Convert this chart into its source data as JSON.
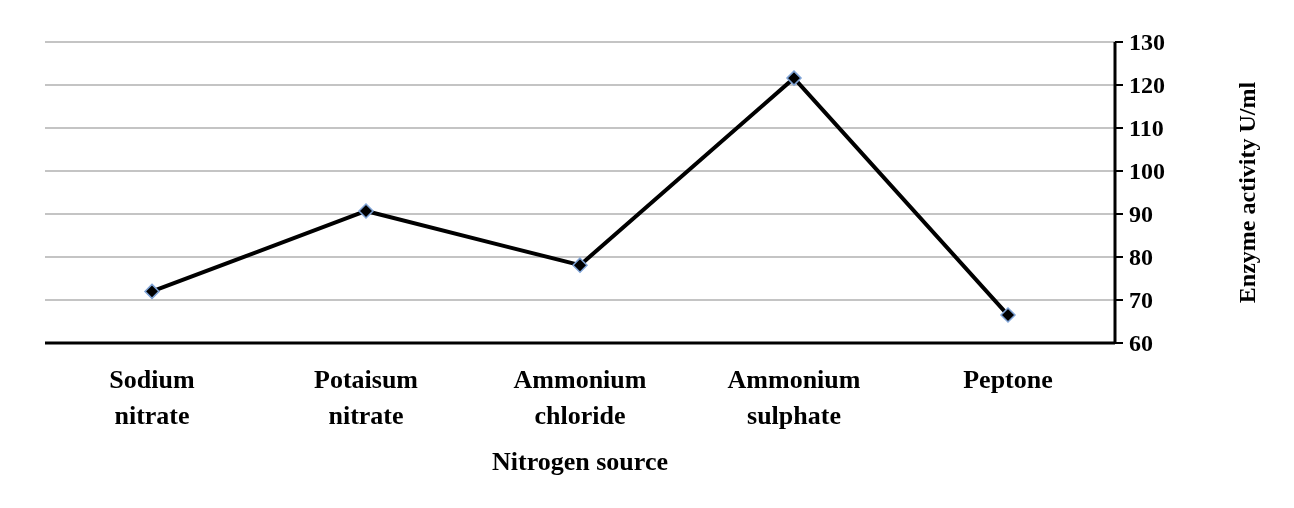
{
  "chart_data": {
    "type": "line",
    "xlabel": "Nitrogen source",
    "ylabel": "Enzyme activity U/ml",
    "categories": [
      "Sodium nitrate",
      "Potaisum nitrate",
      "Ammonium chloride",
      "Ammonium sulphate",
      "Peptone"
    ],
    "series": [
      {
        "color": "#000000",
        "values": [
          72,
          90.7,
          78.1,
          121.6,
          66.5
        ]
      }
    ],
    "ylim": [
      60,
      130
    ],
    "yticks": [
      60,
      70,
      80,
      90,
      100,
      110,
      120,
      130
    ],
    "grid": "y",
    "marker": "diamond",
    "line_style": "solid"
  }
}
